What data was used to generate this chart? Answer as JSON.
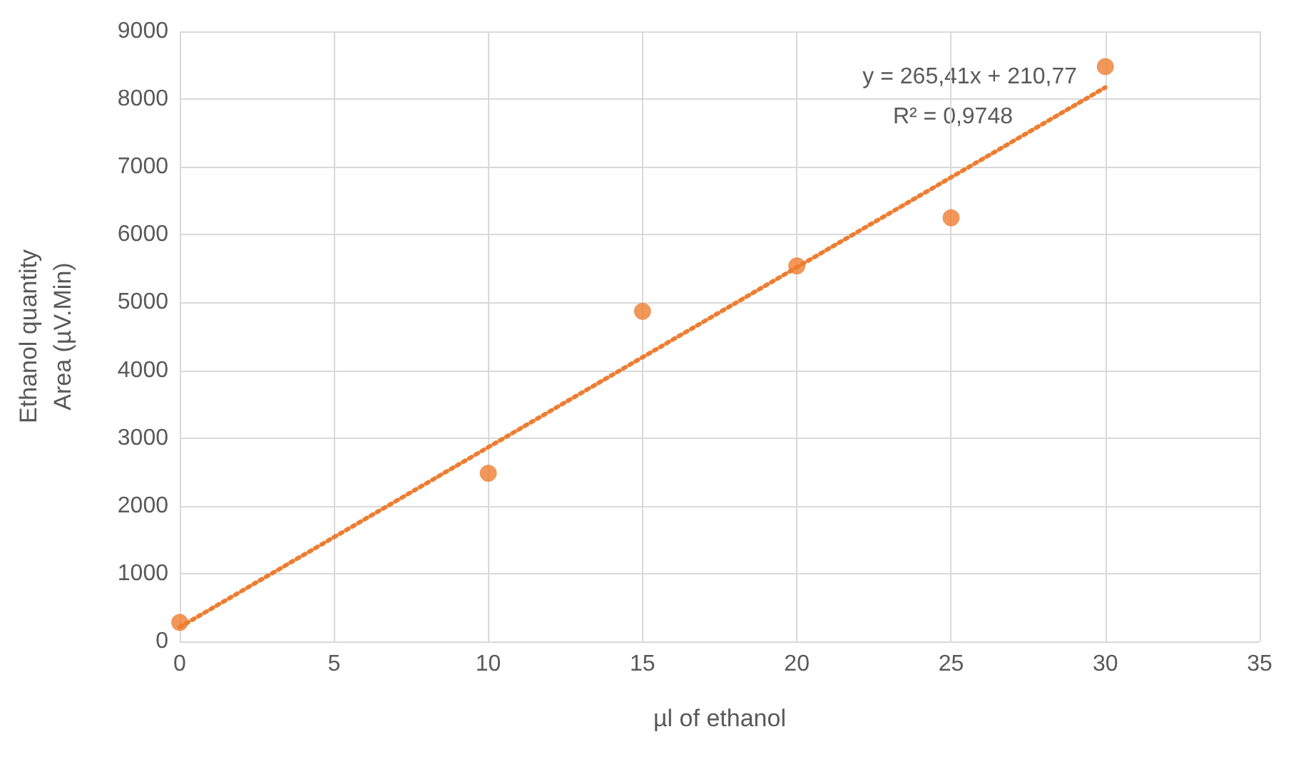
{
  "chart_data": {
    "type": "scatter",
    "xlabel": "µl of ethanol",
    "ylabel": "Ethanol quantity\nArea (µV.Min)",
    "xlim": [
      0,
      35
    ],
    "xticks": [
      0,
      5,
      10,
      15,
      20,
      25,
      30,
      35
    ],
    "ylim": [
      0,
      9000
    ],
    "yticks": [
      0,
      1000,
      2000,
      3000,
      4000,
      5000,
      6000,
      7000,
      8000,
      9000
    ],
    "grid": true,
    "series": [
      {
        "type": "scatter",
        "color": "#ed7d31",
        "marker": "circle",
        "x": [
          0,
          10,
          15,
          20,
          25,
          30
        ],
        "values": [
          280,
          2480,
          4870,
          5540,
          6250,
          8480
        ]
      },
      {
        "type": "line",
        "color": "#ed7d31",
        "marker": "none",
        "line_style": "dotted",
        "x": [
          0,
          30
        ],
        "values": [
          211,
          8173
        ]
      }
    ],
    "annotations": [
      "y = 265,41x + 210,77",
      "R² = 0,9748"
    ]
  }
}
